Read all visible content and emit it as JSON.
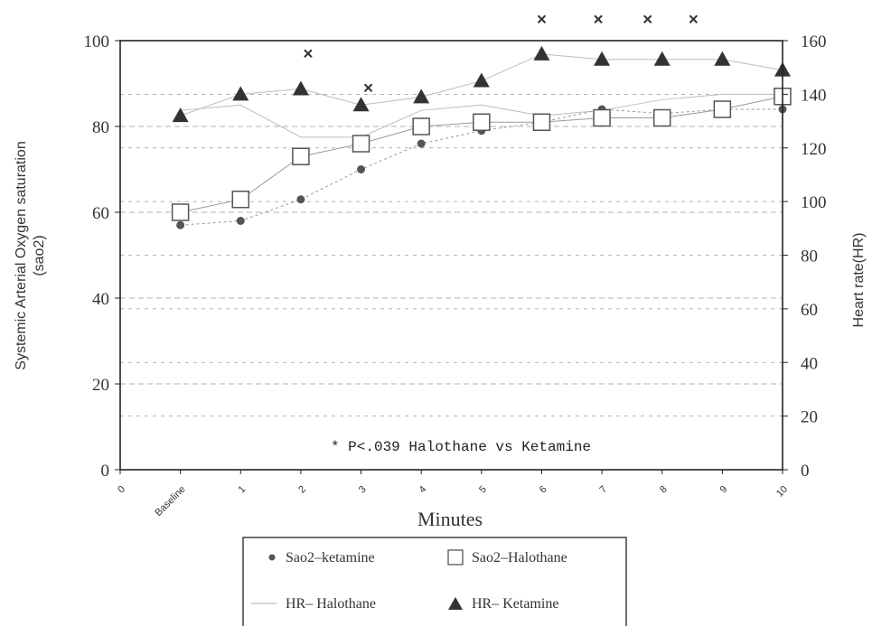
{
  "chart_data": {
    "type": "line",
    "xlabel": "Minutes",
    "ylabel_left_line1": "Systemic Arterial Oxygen saturation",
    "ylabel_left_line2": "(sao2)",
    "ylabel_right": "Heart rate(HR)",
    "annotation": "* P<.039 Halothane vs Ketamine",
    "categories": [
      "0",
      "Baseline",
      "1",
      "2",
      "3",
      "4",
      "5",
      "6",
      "7",
      "8",
      "9",
      "10"
    ],
    "y_left": {
      "lim": [
        0,
        100
      ],
      "ticks": [
        "0",
        "20",
        "40",
        "60",
        "80",
        "100"
      ]
    },
    "y_right": {
      "lim": [
        0,
        160
      ],
      "ticks": [
        "0",
        "20",
        "40",
        "60",
        "80",
        "100",
        "120",
        "140",
        "160"
      ]
    },
    "grid": true,
    "legend_position": "bottom",
    "series": [
      {
        "name": "Sao2-ketamine",
        "axis": "left",
        "marker": "dot",
        "legend_label": "Sao2–ketamine",
        "x": [
          "Baseline",
          "1",
          "2",
          "3",
          "4",
          "5",
          "6",
          "7",
          "8",
          "9",
          "10"
        ],
        "values": [
          57,
          58,
          63,
          70,
          76,
          79,
          81,
          84,
          83,
          84,
          84
        ]
      },
      {
        "name": "Sao2-Halothane",
        "axis": "left",
        "marker": "square",
        "legend_label": "Sao2–Halothane",
        "x": [
          "Baseline",
          "1",
          "2",
          "3",
          "4",
          "5",
          "6",
          "7",
          "8",
          "9",
          "10"
        ],
        "values": [
          60,
          63,
          73,
          76,
          80,
          81,
          81,
          82,
          82,
          84,
          87
        ]
      },
      {
        "name": "HR- Halothane",
        "axis": "right",
        "marker": "none",
        "legend_label": "HR– Halothane",
        "x": [
          "Baseline",
          "1",
          "2",
          "3",
          "4",
          "5",
          "6",
          "7",
          "8",
          "9",
          "10"
        ],
        "values": [
          134,
          136,
          124,
          124,
          134,
          136,
          132,
          134,
          138,
          140,
          140
        ]
      },
      {
        "name": "HR- Ketamine",
        "axis": "right",
        "marker": "triangle",
        "legend_label": "HR– Ketamine",
        "x": [
          "Baseline",
          "1",
          "2",
          "3",
          "4",
          "5",
          "6",
          "7",
          "8",
          "9",
          "10"
        ],
        "values": [
          132,
          140,
          142,
          136,
          139,
          145,
          155,
          153,
          153,
          153,
          149
        ]
      }
    ],
    "significance_markers": [
      {
        "x": "2",
        "value": 97
      },
      {
        "x": "3",
        "value": 89
      },
      {
        "x": "6",
        "value": 105
      },
      {
        "x": "7",
        "value": 105
      },
      {
        "x": "8",
        "value": 105
      },
      {
        "x": "9",
        "value": 105
      }
    ],
    "colors": {
      "axes": "#222222",
      "grid": "#9a9a9a",
      "text": "#333333",
      "ketamine_sao2": "#555555",
      "halothane_sao2": "#555555",
      "hr_halothane": "#bdbdbd",
      "hr_ketamine": "#333333"
    }
  }
}
